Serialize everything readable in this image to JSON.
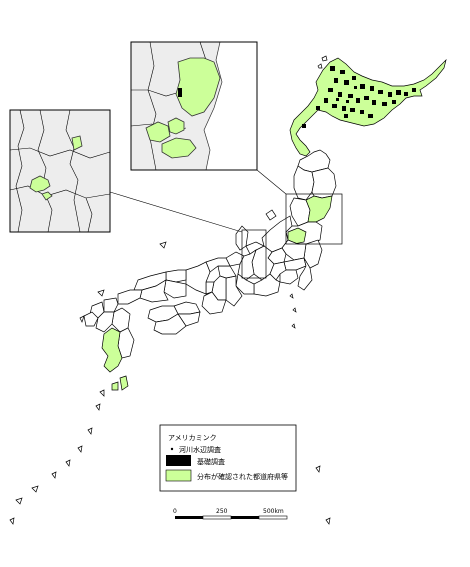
{
  "legend": {
    "title": "アメリカミンク",
    "items": [
      {
        "label": "河川水辺調査",
        "symbol": "dot",
        "color": "#000000"
      },
      {
        "label": "基礎調査",
        "symbol": "filled-rect",
        "color": "#000000"
      },
      {
        "label": "分布が確認された都道府県等",
        "symbol": "filled-rect",
        "color": "#ccff99"
      }
    ]
  },
  "scale_bar": {
    "labels": [
      "0",
      "250",
      "500km"
    ]
  },
  "colors": {
    "confirmed_fill": "#ccff99",
    "survey_cell": "#000000",
    "inset_background": "#ededed"
  }
}
